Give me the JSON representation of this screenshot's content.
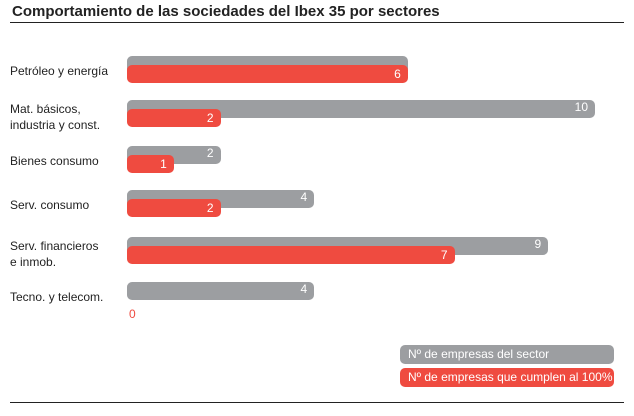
{
  "chart_data": {
    "type": "bar",
    "orientation": "horizontal",
    "title": "Comportamiento de las sociedades del Ibex 35 por sectores",
    "categories": [
      [
        "Petróleo y energía"
      ],
      [
        "Mat. básicos,",
        "industria y const."
      ],
      [
        "Bienes consumo"
      ],
      [
        "Serv. consumo"
      ],
      [
        "Serv. financieros",
        "e inmob."
      ],
      [
        "Tecno. y telecom."
      ]
    ],
    "series": [
      {
        "name": "Nº de empresas del sector",
        "color": "#9c9ea1",
        "values": [
          6,
          10,
          2,
          4,
          9,
          4
        ]
      },
      {
        "name": "Nº de empresas que cumplen al 100%",
        "color": "#ef4b40",
        "values": [
          6,
          2,
          1,
          2,
          7,
          0
        ]
      }
    ],
    "xlim": [
      0,
      10
    ],
    "grid": false,
    "legend_position": "bottom-right"
  }
}
